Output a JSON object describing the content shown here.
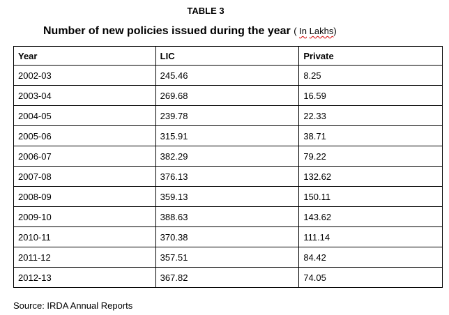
{
  "document": {
    "table_label": "TABLE 3",
    "title": "Number of new policies issued during the year",
    "title_unit_open": "( ",
    "title_unit_in": "In",
    "title_unit_lakhs": "Lakhs",
    "title_unit_close": ")",
    "source": "Source: IRDA Annual Reports"
  },
  "table": {
    "headers": [
      "Year",
      "LIC",
      "Private"
    ],
    "rows": [
      [
        "2002-03",
        "245.46",
        "8.25"
      ],
      [
        "2003-04",
        "269.68",
        "16.59"
      ],
      [
        "2004-05",
        "239.78",
        "22.33"
      ],
      [
        "2005-06",
        "315.91",
        "38.71"
      ],
      [
        "2006-07",
        "382.29",
        "79.22"
      ],
      [
        "2007-08",
        "376.13",
        "132.62"
      ],
      [
        "2008-09",
        "359.13",
        "150.11"
      ],
      [
        "2009-10",
        "388.63",
        "143.62"
      ],
      [
        "2010-11",
        "370.38",
        "111.14"
      ],
      [
        "2011-12",
        "357.51",
        "84.42"
      ],
      [
        "2012-13",
        "367.82",
        "74.05"
      ]
    ]
  }
}
